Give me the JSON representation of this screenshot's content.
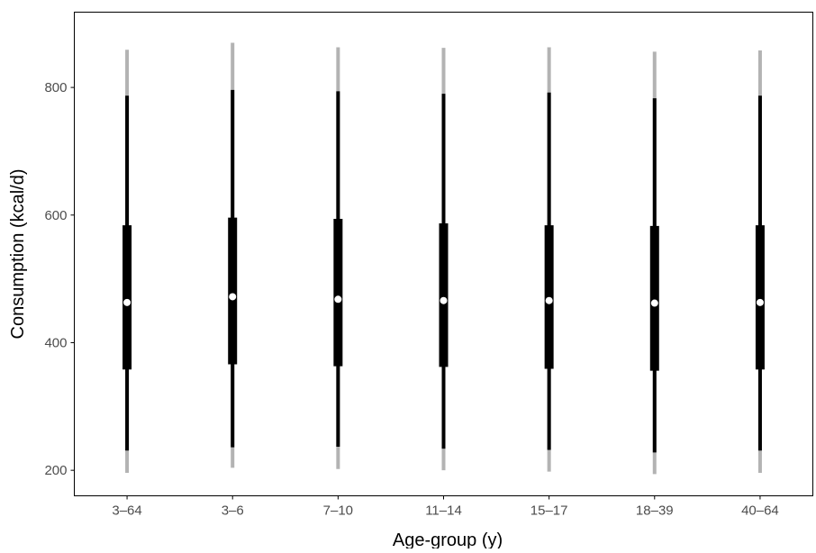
{
  "chart_data": {
    "type": "interval",
    "title": "",
    "xlabel": "Age-group (y)",
    "ylabel": "Consumption (kcal/d)",
    "ylim": [
      160,
      918
    ],
    "yticks": [
      200,
      400,
      600,
      800
    ],
    "ytick_labels": [
      "200",
      "400",
      "600",
      "800"
    ],
    "grid": false,
    "categories": [
      "3–64",
      "3–6",
      "7–10",
      "11–14",
      "15–17",
      "18–39",
      "40–64"
    ],
    "median": [
      463,
      472,
      468,
      466,
      466,
      462,
      463
    ],
    "inner_interval": {
      "low": [
        358,
        366,
        363,
        362,
        359,
        356,
        358
      ],
      "high": [
        584,
        596,
        594,
        587,
        584,
        583,
        584
      ]
    },
    "middle_interval": {
      "low": [
        231,
        236,
        237,
        234,
        232,
        228,
        231
      ],
      "high": [
        787,
        796,
        794,
        790,
        792,
        783,
        787
      ]
    },
    "outer_interval": {
      "low": [
        196,
        204,
        202,
        200,
        198,
        194,
        196
      ],
      "high": [
        859,
        870,
        863,
        862,
        863,
        856,
        858
      ]
    },
    "colors": {
      "outer": "#b3b3b3",
      "middle": "#000000",
      "inner": "#000000",
      "median_point": "#ffffff",
      "axes": "#000000",
      "tick_label": "#4d4d4d"
    }
  }
}
